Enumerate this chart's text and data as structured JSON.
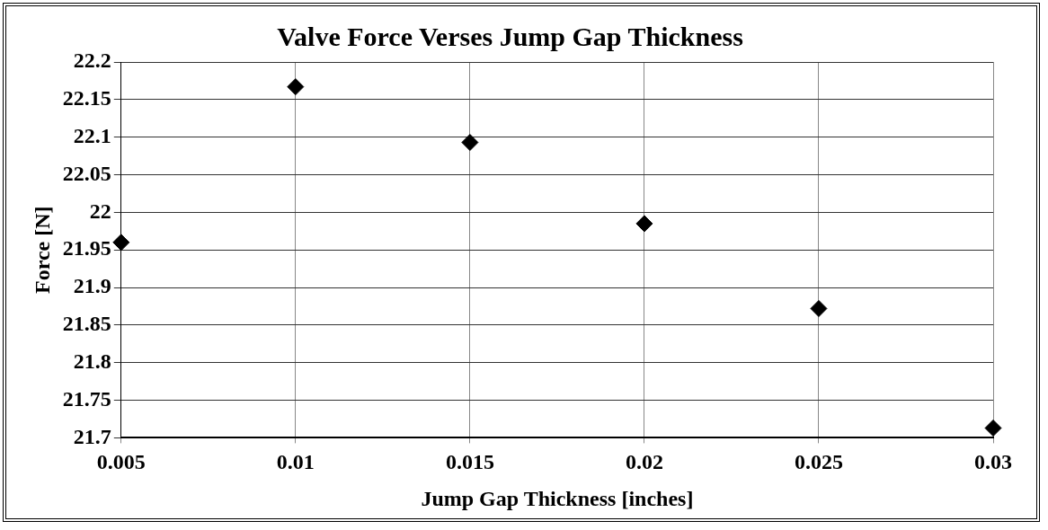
{
  "chart_data": {
    "type": "scatter",
    "title": "Valve Force Verses Jump Gap Thickness",
    "xlabel": "Jump Gap Thickness [inches]",
    "ylabel": "Force [N]",
    "x": [
      0.005,
      0.01,
      0.015,
      0.02,
      0.025,
      0.03
    ],
    "series": [
      {
        "color": "#000000",
        "values": [
          21.96,
          22.167,
          22.093,
          21.985,
          21.872,
          21.713
        ]
      }
    ],
    "xlim": [
      0.005,
      0.03
    ],
    "xticks": [
      0.005,
      0.01,
      0.015,
      0.02,
      0.025,
      0.03
    ],
    "ylim": [
      21.7,
      22.2
    ],
    "yticks": [
      21.7,
      21.75,
      21.8,
      21.85,
      21.9,
      21.95,
      22,
      22.05,
      22.1,
      22.15,
      22.2
    ],
    "grid": true,
    "legend": false,
    "marker": "diamond"
  }
}
